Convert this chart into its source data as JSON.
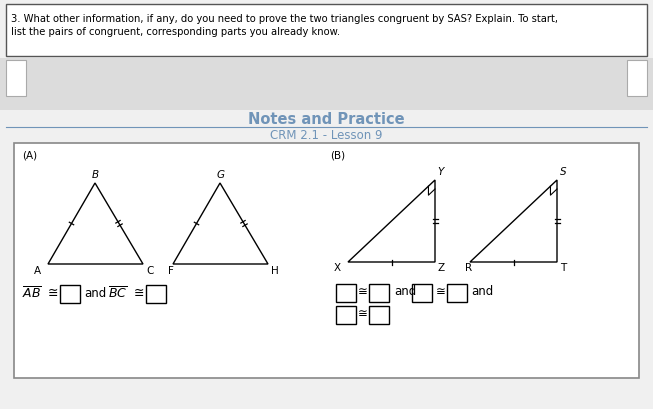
{
  "title": "Notes and Practice",
  "subtitle": "CRM 2.1 - Lesson 9",
  "question_text_1": "3. What other information, if any, do you need to prove the two triangles congruent by SAS? Explain. To start,",
  "question_text_2": "list the pairs of congruent, corresponding parts you already know.",
  "label_A": "(A)",
  "label_B": "(B)",
  "title_color": "#7094b8",
  "subtitle_color": "#7094b8",
  "text_color": "#000000",
  "bg_color": "#f0f0f0",
  "white": "#ffffff",
  "gray_band_color": "#dcdcdc",
  "inner_border_color": "#888888",
  "outer_border_color": "#555555",
  "label_color": "#000000"
}
